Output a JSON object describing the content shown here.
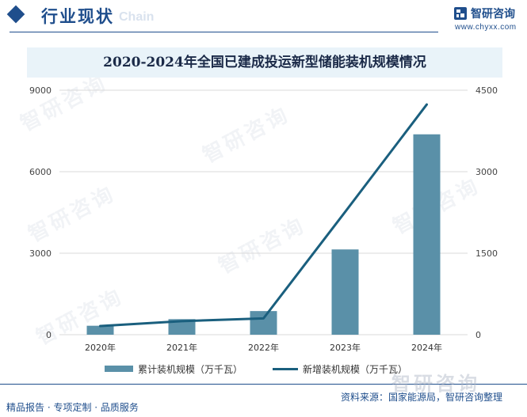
{
  "header": {
    "section_title": "行业现状",
    "bg_text": "Chain",
    "brand_name": "智研咨询",
    "brand_url": "www.chyxx.com"
  },
  "chart_data": {
    "type": "bar",
    "title": "2020-2024年全国已建成投运新型储能装机规模情况",
    "categories": [
      "2020年",
      "2021年",
      "2022年",
      "2023年",
      "2024年"
    ],
    "series": [
      {
        "name": "累计装机规模（万千瓦）",
        "type": "bar",
        "axis": "left",
        "values": [
          330,
          573,
          870,
          3139,
          7376
        ]
      },
      {
        "name": "新增装机规模（万千瓦）",
        "type": "line",
        "axis": "right",
        "values": [
          160,
          250,
          300,
          2260,
          4237
        ]
      }
    ],
    "left_axis": {
      "ylim": [
        0,
        9000
      ],
      "ticks": [
        "0",
        "3000",
        "6000",
        "9000"
      ]
    },
    "right_axis": {
      "ylim": [
        0,
        4500
      ],
      "ticks": [
        "0",
        "1500",
        "3000",
        "4500"
      ]
    },
    "grid": true,
    "legend_position": "bottom",
    "colors": {
      "bar": "#5a90a8",
      "line": "#1a5f7e",
      "grid": "#d9d9d9"
    }
  },
  "footer": {
    "left": "精品报告 · 专项定制 · 品质服务",
    "source": "资料来源：国家能源局，智研咨询整理"
  },
  "watermark": {
    "text": "智研咨询"
  }
}
